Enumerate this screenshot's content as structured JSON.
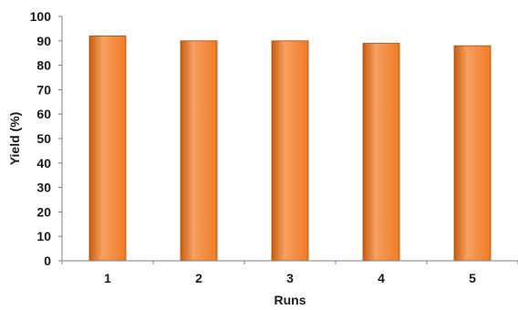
{
  "chart_data": {
    "type": "bar",
    "title": "",
    "xlabel": "Runs",
    "ylabel": "Yield (%)",
    "categories": [
      "1",
      "2",
      "3",
      "4",
      "5"
    ],
    "values": [
      92,
      90,
      90,
      89,
      88
    ],
    "ylim": [
      0,
      100
    ],
    "yticks": [
      0,
      10,
      20,
      30,
      40,
      50,
      60,
      70,
      80,
      90,
      100
    ],
    "grid": false,
    "legend": "none",
    "colors": {
      "bar": "#f07a26",
      "bar_light": "#f7a060",
      "bar_dark": "#c85d12",
      "bar_edge": "#a84c0c",
      "axis": "#7f7f7f",
      "text": "#1a1a1a"
    }
  }
}
